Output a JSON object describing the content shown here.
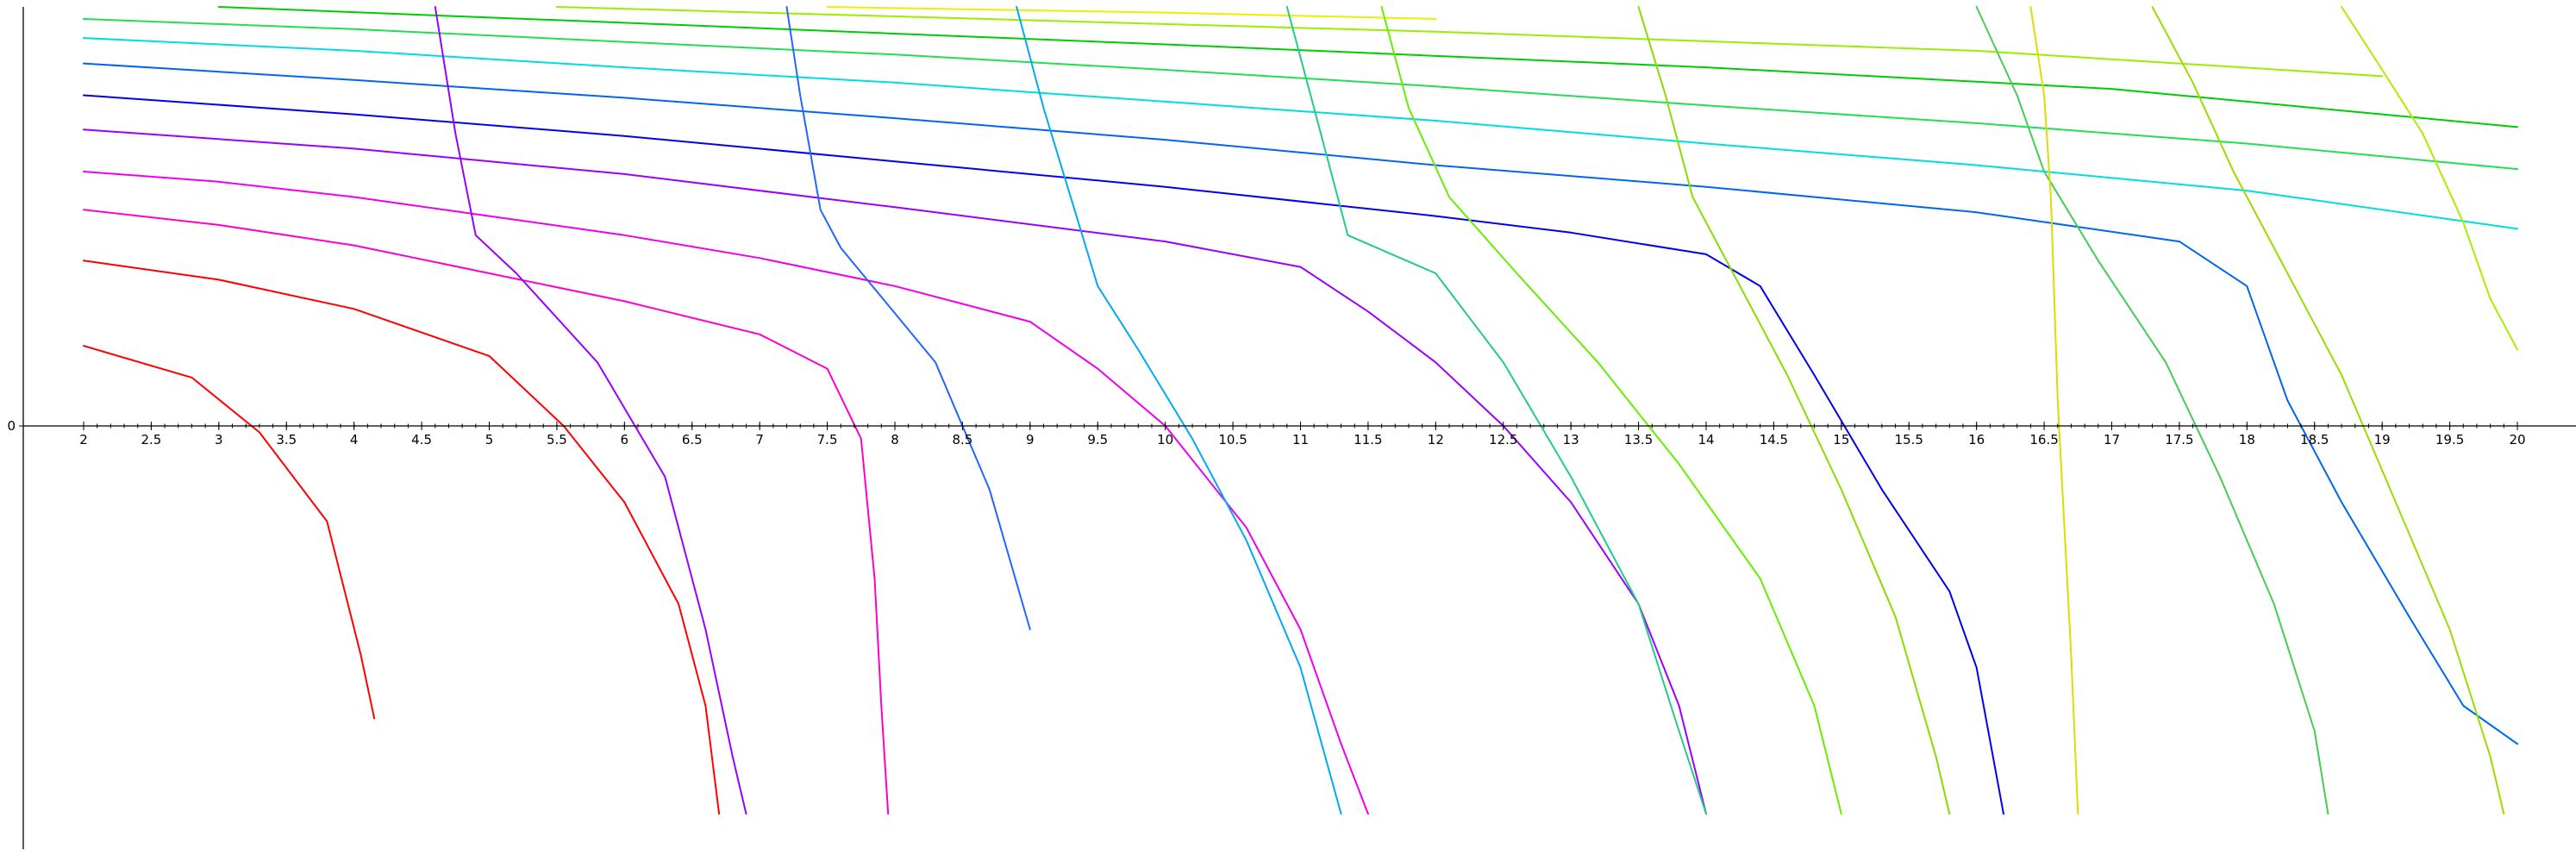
{
  "chart_data": {
    "type": "line",
    "title": "",
    "xlabel": "",
    "ylabel": "",
    "xlim": [
      2,
      20
    ],
    "ylim": [
      -3.1,
      3.1
    ],
    "grid": false,
    "y_tick_labels": [
      {
        "value": 0,
        "label": "0"
      }
    ],
    "x_ticks": [
      {
        "value": 2,
        "label": "2"
      },
      {
        "value": 2.5,
        "label": "2.5"
      },
      {
        "value": 3,
        "label": "3"
      },
      {
        "value": 3.5,
        "label": "3.5"
      },
      {
        "value": 4,
        "label": "4"
      },
      {
        "value": 4.5,
        "label": "4.5"
      },
      {
        "value": 5,
        "label": "5"
      },
      {
        "value": 5.5,
        "label": "5.5"
      },
      {
        "value": 6,
        "label": "6"
      },
      {
        "value": 6.5,
        "label": "6.5"
      },
      {
        "value": 7,
        "label": "7"
      },
      {
        "value": 7.5,
        "label": "7.5"
      },
      {
        "value": 8,
        "label": "8"
      },
      {
        "value": 8.5,
        "label": "8.5"
      },
      {
        "value": 9,
        "label": "9"
      },
      {
        "value": 9.5,
        "label": "9.5"
      },
      {
        "value": 10,
        "label": "10"
      },
      {
        "value": 10.5,
        "label": "10.5"
      },
      {
        "value": 11,
        "label": "11"
      },
      {
        "value": 11.5,
        "label": "11.5"
      },
      {
        "value": 12,
        "label": "12"
      },
      {
        "value": 12.5,
        "label": "12.5"
      },
      {
        "value": 13,
        "label": "13"
      },
      {
        "value": 13.5,
        "label": "13.5"
      },
      {
        "value": 14,
        "label": "14"
      },
      {
        "value": 14.5,
        "label": "14.5"
      },
      {
        "value": 15,
        "label": "15"
      },
      {
        "value": 15.5,
        "label": "15.5"
      },
      {
        "value": 16,
        "label": "16"
      },
      {
        "value": 16.5,
        "label": "16.5"
      },
      {
        "value": 17,
        "label": "17"
      },
      {
        "value": 17.5,
        "label": "17.5"
      },
      {
        "value": 18,
        "label": "18"
      },
      {
        "value": 18.5,
        "label": "18.5"
      },
      {
        "value": 19,
        "label": "19"
      },
      {
        "value": 19.5,
        "label": "19.5"
      },
      {
        "value": 20,
        "label": "20"
      }
    ],
    "series": [
      {
        "color": "#ff0000",
        "points": [
          [
            2,
            0.63
          ],
          [
            2.8,
            0.38
          ],
          [
            3.3,
            -0.05
          ],
          [
            3.8,
            -0.75
          ],
          [
            4.05,
            -1.8
          ],
          [
            4.15,
            -2.3
          ]
        ]
      },
      {
        "color": "#ff0000",
        "points": [
          [
            2,
            1.3
          ],
          [
            3,
            1.15
          ],
          [
            4,
            0.92
          ],
          [
            5,
            0.55
          ],
          [
            5.55,
            0
          ],
          [
            6,
            -0.6
          ],
          [
            6.4,
            -1.4
          ],
          [
            6.6,
            -2.2
          ],
          [
            6.7,
            -3.05
          ]
        ]
      },
      {
        "color": "#ff00cc",
        "points": [
          [
            2,
            1.7
          ],
          [
            3,
            1.58
          ],
          [
            4,
            1.42
          ],
          [
            5,
            1.2
          ],
          [
            6,
            0.98
          ],
          [
            7,
            0.72
          ],
          [
            7.5,
            0.45
          ],
          [
            7.75,
            -0.1
          ],
          [
            7.85,
            -1.2
          ],
          [
            7.9,
            -2.2
          ],
          [
            7.95,
            -3.05
          ]
        ]
      },
      {
        "color": "#ee00ee",
        "points": [
          [
            2,
            2.0
          ],
          [
            3,
            1.92
          ],
          [
            4,
            1.8
          ],
          [
            5,
            1.65
          ],
          [
            6,
            1.5
          ],
          [
            7,
            1.32
          ],
          [
            8,
            1.1
          ],
          [
            9,
            0.82
          ],
          [
            9.5,
            0.45
          ],
          [
            10,
            0
          ],
          [
            10.6,
            -0.8
          ],
          [
            11,
            -1.6
          ],
          [
            11.3,
            -2.5
          ],
          [
            11.5,
            -3.05
          ]
        ]
      },
      {
        "color": "#9900ff",
        "points": [
          [
            2,
            2.33
          ],
          [
            4,
            2.18
          ],
          [
            6,
            1.98
          ],
          [
            8,
            1.72
          ],
          [
            10,
            1.45
          ],
          [
            11,
            1.25
          ],
          [
            11.5,
            0.9
          ],
          [
            12,
            0.5
          ],
          [
            12.5,
            0
          ],
          [
            13,
            -0.6
          ],
          [
            13.5,
            -1.4
          ],
          [
            13.8,
            -2.2
          ],
          [
            14,
            -3.05
          ]
        ]
      },
      {
        "color": "#0000ee",
        "points": [
          [
            2,
            2.6
          ],
          [
            4,
            2.45
          ],
          [
            6,
            2.28
          ],
          [
            8,
            2.08
          ],
          [
            10,
            1.88
          ],
          [
            12,
            1.65
          ],
          [
            13,
            1.52
          ],
          [
            14,
            1.35
          ],
          [
            14.4,
            1.1
          ],
          [
            14.8,
            0.4
          ],
          [
            15.3,
            -0.5
          ],
          [
            15.8,
            -1.3
          ],
          [
            16,
            -1.9
          ],
          [
            16.2,
            -3.05
          ]
        ]
      },
      {
        "color": "#0066ee",
        "points": [
          [
            2,
            2.85
          ],
          [
            4,
            2.72
          ],
          [
            6,
            2.58
          ],
          [
            8,
            2.42
          ],
          [
            10,
            2.25
          ],
          [
            12,
            2.05
          ],
          [
            14,
            1.88
          ],
          [
            16,
            1.68
          ],
          [
            17.5,
            1.45
          ],
          [
            18,
            1.1
          ],
          [
            18.3,
            0.2
          ],
          [
            18.7,
            -0.6
          ],
          [
            19.2,
            -1.5
          ],
          [
            19.6,
            -2.2
          ],
          [
            20,
            -2.5
          ]
        ]
      },
      {
        "color": "#00dddd",
        "points": [
          [
            2,
            3.05
          ],
          [
            4,
            2.95
          ],
          [
            6,
            2.82
          ],
          [
            8,
            2.7
          ],
          [
            10,
            2.55
          ],
          [
            12,
            2.4
          ],
          [
            14,
            2.22
          ],
          [
            16,
            2.05
          ],
          [
            18,
            1.85
          ],
          [
            20,
            1.55
          ]
        ]
      },
      {
        "color": "#22dd55",
        "points": [
          [
            2,
            3.2
          ],
          [
            4,
            3.12
          ],
          [
            6,
            3.02
          ],
          [
            8,
            2.92
          ],
          [
            10,
            2.8
          ],
          [
            12,
            2.67
          ],
          [
            14,
            2.52
          ],
          [
            16,
            2.38
          ],
          [
            18,
            2.22
          ],
          [
            20,
            2.02
          ]
        ]
      },
      {
        "color": "#00cc00",
        "points": [
          [
            3,
            3.3
          ],
          [
            6,
            3.17
          ],
          [
            10,
            3.0
          ],
          [
            14,
            2.82
          ],
          [
            17,
            2.65
          ],
          [
            20,
            2.35
          ]
        ]
      },
      {
        "color": "#99ee00",
        "points": [
          [
            5.5,
            3.3
          ],
          [
            8,
            3.22
          ],
          [
            12,
            3.1
          ],
          [
            16,
            2.95
          ],
          [
            19,
            2.75
          ]
        ]
      },
      {
        "color": "#eeee00",
        "points": [
          [
            7.5,
            3.3
          ],
          [
            10,
            3.25
          ],
          [
            12,
            3.2
          ]
        ]
      },
      {
        "color": "#9900ff",
        "points": [
          [
            4.6,
            3.3
          ],
          [
            4.75,
            2.3
          ],
          [
            4.9,
            1.5
          ],
          [
            5.2,
            1.2
          ],
          [
            5.8,
            0.5
          ],
          [
            6.3,
            -0.4
          ],
          [
            6.6,
            -1.6
          ],
          [
            6.8,
            -2.6
          ],
          [
            6.9,
            -3.05
          ]
        ]
      },
      {
        "color": "#2266ff",
        "points": [
          [
            7.2,
            3.3
          ],
          [
            7.3,
            2.6
          ],
          [
            7.45,
            1.7
          ],
          [
            7.6,
            1.4
          ],
          [
            8.3,
            0.5
          ],
          [
            8.7,
            -0.5
          ],
          [
            9,
            -1.6
          ]
        ]
      },
      {
        "color": "#00aaee",
        "points": [
          [
            8.9,
            3.3
          ],
          [
            9.1,
            2.5
          ],
          [
            9.3,
            1.8
          ],
          [
            9.5,
            1.1
          ],
          [
            9.8,
            0.6
          ],
          [
            10.2,
            -0.1
          ],
          [
            10.6,
            -0.9
          ],
          [
            11,
            -1.9
          ],
          [
            11.3,
            -3.05
          ]
        ]
      },
      {
        "color": "#22cc88",
        "points": [
          [
            10.9,
            3.3
          ],
          [
            11.1,
            2.5
          ],
          [
            11.35,
            1.5
          ],
          [
            12,
            1.2
          ],
          [
            12.5,
            0.5
          ],
          [
            13,
            -0.4
          ],
          [
            13.5,
            -1.4
          ],
          [
            13.8,
            -2.4
          ],
          [
            14,
            -3.05
          ]
        ]
      },
      {
        "color": "#66ee00",
        "points": [
          [
            11.6,
            3.3
          ],
          [
            11.8,
            2.5
          ],
          [
            12.1,
            1.8
          ],
          [
            12.6,
            1.2
          ],
          [
            13.2,
            0.5
          ],
          [
            13.8,
            -0.3
          ],
          [
            14.4,
            -1.2
          ],
          [
            14.8,
            -2.2
          ],
          [
            15,
            -3.05
          ]
        ]
      },
      {
        "color": "#88dd00",
        "points": [
          [
            13.5,
            3.3
          ],
          [
            13.7,
            2.6
          ],
          [
            13.9,
            1.8
          ],
          [
            14.2,
            1.2
          ],
          [
            14.6,
            0.4
          ],
          [
            15,
            -0.5
          ],
          [
            15.4,
            -1.5
          ],
          [
            15.7,
            -2.6
          ],
          [
            15.8,
            -3.05
          ]
        ]
      },
      {
        "color": "#44cc55",
        "points": [
          [
            16,
            3.3
          ],
          [
            16.3,
            2.6
          ],
          [
            16.5,
            2.0
          ],
          [
            16.9,
            1.3
          ],
          [
            17.4,
            0.5
          ],
          [
            17.8,
            -0.4
          ],
          [
            18.2,
            -1.4
          ],
          [
            18.5,
            -2.4
          ],
          [
            18.6,
            -3.05
          ]
        ]
      },
      {
        "color": "#99dd00",
        "points": [
          [
            17.3,
            3.3
          ],
          [
            17.6,
            2.7
          ],
          [
            17.9,
            2.0
          ],
          [
            18.3,
            1.2
          ],
          [
            18.7,
            0.4
          ],
          [
            19.1,
            -0.6
          ],
          [
            19.5,
            -1.6
          ],
          [
            19.8,
            -2.6
          ],
          [
            19.9,
            -3.05
          ]
        ]
      },
      {
        "color": "#aaee00",
        "points": [
          [
            18.7,
            3.3
          ],
          [
            19.0,
            2.8
          ],
          [
            19.3,
            2.3
          ],
          [
            19.6,
            1.6
          ],
          [
            19.8,
            1.0
          ],
          [
            20,
            0.6
          ]
        ]
      },
      {
        "color": "#dddd00",
        "points": [
          [
            16.4,
            3.3
          ],
          [
            16.5,
            2.6
          ],
          [
            16.55,
            1.8
          ],
          [
            16.6,
            0.2
          ],
          [
            16.7,
            -1.8
          ],
          [
            16.75,
            -3.05
          ]
        ]
      }
    ]
  }
}
